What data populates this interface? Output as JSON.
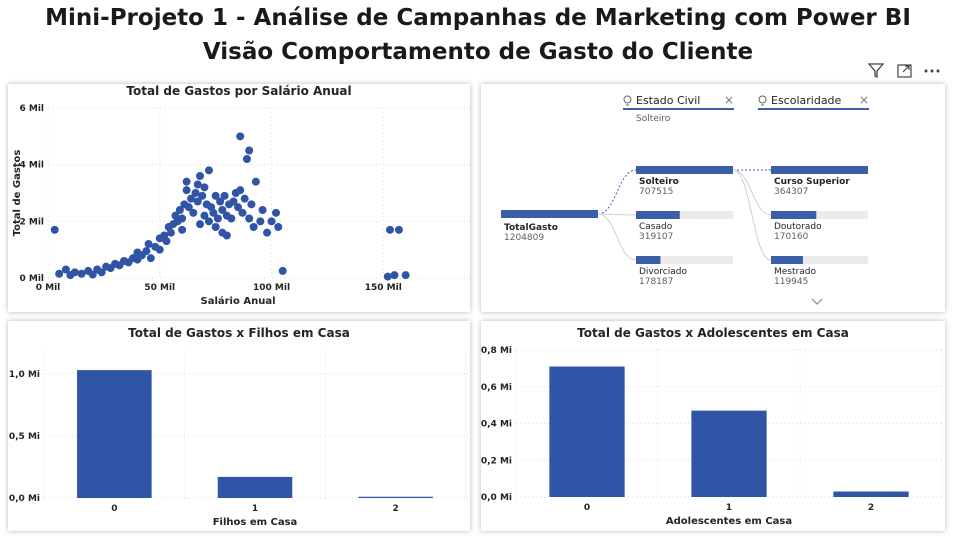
{
  "header": {
    "title": "Mini-Projeto 1 - Análise de Campanhas de Marketing com Power BI",
    "subtitle": "Visão Comportamento de Gasto do Cliente"
  },
  "toolbar": {
    "filter_icon": "filter-icon",
    "focus_icon": "focus-mode-icon",
    "more_icon": "more-options-icon"
  },
  "colors": {
    "accent": "#3a5ea8",
    "bar": "#3054a6",
    "track": "#ebebeb"
  },
  "decomposition": {
    "slicers": [
      {
        "label": "Estado Civil",
        "value": "Solteiro"
      },
      {
        "label": "Escolaridade",
        "value": ""
      }
    ],
    "root": {
      "label": "TotalGasto",
      "value": "1204809"
    },
    "level1": [
      {
        "label": "Solteiro",
        "value": "707515",
        "selected": true,
        "fraction": 1.0
      },
      {
        "label": "Casado",
        "value": "319107",
        "selected": false,
        "fraction": 0.451
      },
      {
        "label": "Divorciado",
        "value": "178187",
        "selected": false,
        "fraction": 0.252
      }
    ],
    "level2": [
      {
        "label": "Curso Superior",
        "value": "364307",
        "selected": true,
        "fraction": 1.0
      },
      {
        "label": "Doutorado",
        "value": "170160",
        "selected": false,
        "fraction": 0.467
      },
      {
        "label": "Mestrado",
        "value": "119945",
        "selected": false,
        "fraction": 0.329
      }
    ]
  },
  "chart_data": [
    {
      "type": "scatter",
      "title": "Total de Gastos por Salário Anual",
      "xlabel": "Salário Anual",
      "ylabel": "Total de Gastos",
      "xlim": [
        0,
        170000
      ],
      "ylim": [
        0,
        6000
      ],
      "xticks": [
        "0 Mil",
        "50 Mil",
        "100 Mil",
        "150 Mil"
      ],
      "yticks": [
        "0 Mil",
        "2 Mil",
        "4 Mil",
        "6 Mil"
      ],
      "points": [
        [
          3000,
          1700
        ],
        [
          5000,
          150
        ],
        [
          8000,
          300
        ],
        [
          10000,
          100
        ],
        [
          12000,
          200
        ],
        [
          15000,
          150
        ],
        [
          18000,
          250
        ],
        [
          20000,
          120
        ],
        [
          22000,
          300
        ],
        [
          24000,
          200
        ],
        [
          26000,
          400
        ],
        [
          28000,
          350
        ],
        [
          30000,
          500
        ],
        [
          32000,
          450
        ],
        [
          34000,
          600
        ],
        [
          36000,
          550
        ],
        [
          38000,
          700
        ],
        [
          40000,
          650
        ],
        [
          40000,
          900
        ],
        [
          42000,
          800
        ],
        [
          44000,
          950
        ],
        [
          45000,
          1200
        ],
        [
          46000,
          700
        ],
        [
          48000,
          1100
        ],
        [
          50000,
          1000
        ],
        [
          50000,
          1400
        ],
        [
          52000,
          1500
        ],
        [
          53000,
          1300
        ],
        [
          54000,
          1800
        ],
        [
          55000,
          1600
        ],
        [
          56000,
          1900
        ],
        [
          57000,
          2200
        ],
        [
          58000,
          2000
        ],
        [
          59000,
          2400
        ],
        [
          60000,
          2100
        ],
        [
          60000,
          1700
        ],
        [
          61000,
          2600
        ],
        [
          62000,
          3100
        ],
        [
          62000,
          3400
        ],
        [
          63000,
          2500
        ],
        [
          64000,
          2800
        ],
        [
          65000,
          2300
        ],
        [
          66000,
          3000
        ],
        [
          67000,
          2700
        ],
        [
          67000,
          3300
        ],
        [
          68000,
          3600
        ],
        [
          68000,
          1900
        ],
        [
          69000,
          2900
        ],
        [
          70000,
          2200
        ],
        [
          70000,
          3200
        ],
        [
          71000,
          2600
        ],
        [
          72000,
          2000
        ],
        [
          72000,
          3800
        ],
        [
          73000,
          2500
        ],
        [
          74000,
          2300
        ],
        [
          75000,
          1800
        ],
        [
          75000,
          2900
        ],
        [
          76000,
          2100
        ],
        [
          77000,
          2700
        ],
        [
          78000,
          1600
        ],
        [
          78000,
          2400
        ],
        [
          79000,
          2900
        ],
        [
          80000,
          2200
        ],
        [
          80000,
          1500
        ],
        [
          81000,
          2600
        ],
        [
          82000,
          2100
        ],
        [
          83000,
          2700
        ],
        [
          84000,
          3000
        ],
        [
          85000,
          2500
        ],
        [
          86000,
          3100
        ],
        [
          86000,
          5000
        ],
        [
          87000,
          2300
        ],
        [
          88000,
          2800
        ],
        [
          89000,
          4200
        ],
        [
          90000,
          4500
        ],
        [
          90000,
          2100
        ],
        [
          91000,
          2600
        ],
        [
          92000,
          1800
        ],
        [
          93000,
          3400
        ],
        [
          95000,
          2000
        ],
        [
          96000,
          2400
        ],
        [
          98000,
          1600
        ],
        [
          100000,
          2000
        ],
        [
          102000,
          2300
        ],
        [
          103000,
          1800
        ],
        [
          105000,
          250
        ],
        [
          153000,
          1700
        ],
        [
          157000,
          1700
        ],
        [
          152000,
          50
        ],
        [
          155000,
          100
        ],
        [
          160000,
          100
        ]
      ]
    },
    {
      "type": "bar",
      "title": "Total de Gastos x Filhos em Casa",
      "xlabel": "Filhos em Casa",
      "ylabel": "",
      "categories": [
        "0",
        "1",
        "2"
      ],
      "values": [
        1.03,
        0.17,
        0.01
      ],
      "ylim": [
        0,
        1.2
      ],
      "yticks": [
        "0,0 Mi",
        "0,5 Mi",
        "1,0 Mi"
      ]
    },
    {
      "type": "bar",
      "title": "Total de Gastos x Adolescentes em Casa",
      "xlabel": "Adolescentes em Casa",
      "ylabel": "",
      "categories": [
        "0",
        "1",
        "2"
      ],
      "values": [
        0.71,
        0.47,
        0.03
      ],
      "ylim": [
        0,
        0.8
      ],
      "yticks": [
        "0,0 Mi",
        "0,2 Mi",
        "0,4 Mi",
        "0,6 Mi",
        "0,8 Mi"
      ]
    }
  ]
}
